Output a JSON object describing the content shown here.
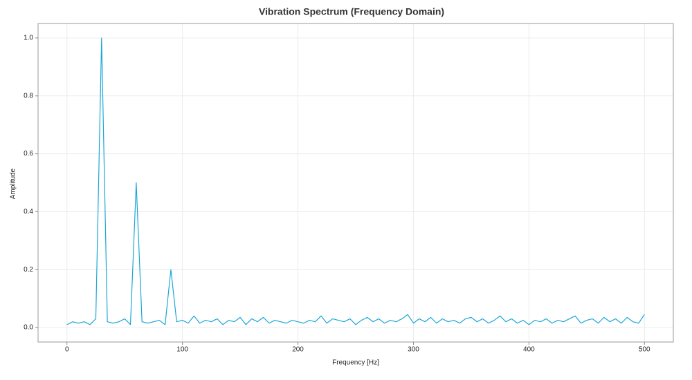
{
  "chart_data": {
    "type": "line",
    "title": "Vibration Spectrum (Frequency Domain)",
    "x_label": "Frequency [Hz]",
    "y_label": "Amplitude",
    "x": [
      0,
      5,
      10,
      15,
      20,
      25,
      30,
      35,
      40,
      45,
      50,
      55,
      60,
      65,
      70,
      75,
      80,
      85,
      90,
      95,
      100,
      105,
      110,
      115,
      120,
      125,
      130,
      135,
      140,
      145,
      150,
      155,
      160,
      165,
      170,
      175,
      180,
      185,
      190,
      195,
      200,
      205,
      210,
      215,
      220,
      225,
      230,
      235,
      240,
      245,
      250,
      255,
      260,
      265,
      270,
      275,
      280,
      285,
      290,
      295,
      300,
      305,
      310,
      315,
      320,
      325,
      330,
      335,
      340,
      345,
      350,
      355,
      360,
      365,
      370,
      375,
      380,
      385,
      390,
      395,
      400,
      405,
      410,
      415,
      420,
      425,
      430,
      435,
      440,
      445,
      450,
      455,
      460,
      465,
      470,
      475,
      480,
      485,
      490,
      495,
      500
    ],
    "series": [
      {
        "name": "Amplitude",
        "color": "#1aa7d6",
        "values": [
          0.01,
          0.02,
          0.015,
          0.02,
          0.01,
          0.03,
          1.0,
          0.02,
          0.015,
          0.02,
          0.03,
          0.01,
          0.5,
          0.02,
          0.015,
          0.02,
          0.025,
          0.01,
          0.2,
          0.02,
          0.025,
          0.015,
          0.04,
          0.015,
          0.025,
          0.02,
          0.03,
          0.01,
          0.025,
          0.02,
          0.035,
          0.01,
          0.03,
          0.02,
          0.035,
          0.015,
          0.025,
          0.02,
          0.015,
          0.025,
          0.02,
          0.015,
          0.025,
          0.02,
          0.04,
          0.015,
          0.03,
          0.025,
          0.02,
          0.03,
          0.01,
          0.025,
          0.035,
          0.02,
          0.03,
          0.015,
          0.025,
          0.02,
          0.03,
          0.045,
          0.015,
          0.03,
          0.02,
          0.035,
          0.015,
          0.03,
          0.02,
          0.025,
          0.015,
          0.03,
          0.035,
          0.02,
          0.03,
          0.015,
          0.025,
          0.04,
          0.02,
          0.03,
          0.015,
          0.025,
          0.01,
          0.025,
          0.02,
          0.03,
          0.015,
          0.025,
          0.02,
          0.03,
          0.04,
          0.015,
          0.025,
          0.03,
          0.015,
          0.035,
          0.02,
          0.03,
          0.015,
          0.035,
          0.02,
          0.015,
          0.045
        ]
      }
    ],
    "xlim": [
      -25,
      525
    ],
    "ylim": [
      -0.05,
      1.05
    ],
    "xticks": [
      0,
      100,
      200,
      300,
      400,
      500
    ],
    "yticks": [
      {
        "value": 0,
        "label": "0.0"
      },
      {
        "value": 0.2,
        "label": "0.2"
      },
      {
        "value": 0.4,
        "label": "0.4"
      },
      {
        "value": 0.6,
        "label": "0.6"
      },
      {
        "value": 0.8,
        "label": "0.8"
      },
      {
        "value": 1,
        "label": "1.0"
      }
    ],
    "grid": true
  }
}
